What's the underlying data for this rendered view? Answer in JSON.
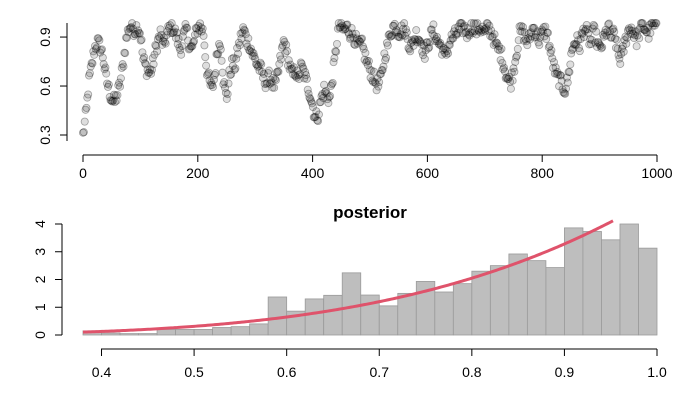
{
  "chart_data": [
    {
      "type": "scatter",
      "title": "",
      "xlabel": "",
      "ylabel": "",
      "xlim": [
        0,
        1000
      ],
      "ylim": [
        0.3,
        0.98
      ],
      "x_ticks": [
        "0",
        "200",
        "400",
        "600",
        "800",
        "1000"
      ],
      "y_ticks": [
        "0.3",
        "0.6",
        "0.9"
      ],
      "point_color": "#000000",
      "trace_anchors": [
        [
          0,
          0.3
        ],
        [
          3,
          0.37
        ],
        [
          6,
          0.45
        ],
        [
          10,
          0.62
        ],
        [
          15,
          0.72
        ],
        [
          20,
          0.83
        ],
        [
          25,
          0.87
        ],
        [
          30,
          0.84
        ],
        [
          35,
          0.78
        ],
        [
          40,
          0.65
        ],
        [
          45,
          0.58
        ],
        [
          50,
          0.52
        ],
        [
          55,
          0.5
        ],
        [
          60,
          0.55
        ],
        [
          65,
          0.62
        ],
        [
          70,
          0.74
        ],
        [
          75,
          0.88
        ],
        [
          80,
          0.96
        ],
        [
          85,
          0.97
        ],
        [
          90,
          0.94
        ],
        [
          95,
          0.97
        ],
        [
          100,
          0.92
        ],
        [
          105,
          0.76
        ],
        [
          110,
          0.71
        ],
        [
          115,
          0.68
        ],
        [
          120,
          0.7
        ],
        [
          125,
          0.8
        ],
        [
          130,
          0.87
        ],
        [
          135,
          0.92
        ],
        [
          140,
          0.84
        ],
        [
          145,
          0.9
        ],
        [
          150,
          0.95
        ],
        [
          155,
          0.97
        ],
        [
          160,
          0.93
        ],
        [
          165,
          0.88
        ],
        [
          170,
          0.82
        ],
        [
          175,
          0.9
        ],
        [
          180,
          0.95
        ],
        [
          185,
          0.86
        ],
        [
          190,
          0.82
        ],
        [
          195,
          0.9
        ],
        [
          200,
          0.96
        ],
        [
          205,
          0.97
        ],
        [
          210,
          0.92
        ],
        [
          215,
          0.72
        ],
        [
          220,
          0.62
        ],
        [
          225,
          0.58
        ],
        [
          230,
          0.68
        ],
        [
          235,
          0.84
        ],
        [
          240,
          0.86
        ],
        [
          245,
          0.62
        ],
        [
          250,
          0.52
        ],
        [
          255,
          0.66
        ],
        [
          260,
          0.74
        ],
        [
          265,
          0.72
        ],
        [
          270,
          0.82
        ],
        [
          275,
          0.9
        ],
        [
          280,
          0.95
        ],
        [
          285,
          0.88
        ],
        [
          290,
          0.86
        ],
        [
          295,
          0.8
        ],
        [
          300,
          0.76
        ],
        [
          305,
          0.72
        ],
        [
          310,
          0.7
        ],
        [
          315,
          0.64
        ],
        [
          320,
          0.62
        ],
        [
          325,
          0.66
        ],
        [
          330,
          0.62
        ],
        [
          335,
          0.6
        ],
        [
          340,
          0.68
        ],
        [
          345,
          0.78
        ],
        [
          350,
          0.88
        ],
        [
          355,
          0.8
        ],
        [
          360,
          0.72
        ],
        [
          365,
          0.66
        ],
        [
          370,
          0.7
        ],
        [
          375,
          0.64
        ],
        [
          380,
          0.72
        ],
        [
          385,
          0.68
        ],
        [
          390,
          0.62
        ],
        [
          395,
          0.56
        ],
        [
          400,
          0.48
        ],
        [
          405,
          0.4
        ],
        [
          410,
          0.43
        ],
        [
          415,
          0.52
        ],
        [
          420,
          0.58
        ],
        [
          425,
          0.54
        ],
        [
          430,
          0.52
        ],
        [
          435,
          0.66
        ],
        [
          440,
          0.8
        ],
        [
          445,
          0.97
        ],
        [
          450,
          0.96
        ],
        [
          455,
          0.94
        ],
        [
          460,
          0.96
        ],
        [
          465,
          0.93
        ],
        [
          470,
          0.92
        ],
        [
          475,
          0.88
        ],
        [
          480,
          0.84
        ],
        [
          485,
          0.86
        ],
        [
          490,
          0.8
        ],
        [
          495,
          0.74
        ],
        [
          500,
          0.7
        ],
        [
          505,
          0.66
        ],
        [
          510,
          0.62
        ],
        [
          515,
          0.6
        ],
        [
          520,
          0.66
        ],
        [
          525,
          0.78
        ],
        [
          530,
          0.84
        ],
        [
          535,
          0.92
        ],
        [
          540,
          0.96
        ],
        [
          545,
          0.97
        ],
        [
          550,
          0.93
        ],
        [
          555,
          0.94
        ],
        [
          560,
          0.96
        ],
        [
          565,
          0.9
        ],
        [
          570,
          0.84
        ],
        [
          575,
          0.86
        ],
        [
          580,
          0.92
        ],
        [
          585,
          0.9
        ],
        [
          590,
          0.86
        ],
        [
          595,
          0.8
        ],
        [
          600,
          0.84
        ],
        [
          605,
          0.9
        ],
        [
          610,
          0.94
        ],
        [
          615,
          0.9
        ],
        [
          620,
          0.86
        ],
        [
          625,
          0.84
        ],
        [
          630,
          0.78
        ],
        [
          635,
          0.82
        ],
        [
          640,
          0.88
        ],
        [
          645,
          0.9
        ],
        [
          650,
          0.92
        ],
        [
          655,
          0.94
        ],
        [
          660,
          0.96
        ],
        [
          665,
          0.95
        ],
        [
          670,
          0.92
        ],
        [
          675,
          0.96
        ],
        [
          680,
          0.97
        ],
        [
          685,
          0.94
        ],
        [
          690,
          0.96
        ],
        [
          695,
          0.95
        ],
        [
          700,
          0.92
        ],
        [
          705,
          0.96
        ],
        [
          710,
          0.94
        ],
        [
          715,
          0.9
        ],
        [
          720,
          0.84
        ],
        [
          725,
          0.82
        ],
        [
          730,
          0.78
        ],
        [
          735,
          0.7
        ],
        [
          740,
          0.64
        ],
        [
          745,
          0.62
        ],
        [
          750,
          0.7
        ],
        [
          755,
          0.8
        ],
        [
          760,
          0.92
        ],
        [
          765,
          0.94
        ],
        [
          770,
          0.9
        ],
        [
          775,
          0.86
        ],
        [
          780,
          0.92
        ],
        [
          785,
          0.96
        ],
        [
          790,
          0.92
        ],
        [
          795,
          0.88
        ],
        [
          800,
          0.92
        ],
        [
          805,
          0.94
        ],
        [
          810,
          0.9
        ],
        [
          815,
          0.8
        ],
        [
          820,
          0.72
        ],
        [
          825,
          0.66
        ],
        [
          830,
          0.64
        ],
        [
          835,
          0.6
        ],
        [
          840,
          0.58
        ],
        [
          845,
          0.64
        ],
        [
          850,
          0.78
        ],
        [
          855,
          0.86
        ],
        [
          860,
          0.88
        ],
        [
          865,
          0.84
        ],
        [
          870,
          0.92
        ],
        [
          875,
          0.96
        ],
        [
          880,
          0.9
        ],
        [
          885,
          0.86
        ],
        [
          890,
          0.94
        ],
        [
          895,
          0.88
        ],
        [
          900,
          0.82
        ],
        [
          905,
          0.86
        ],
        [
          910,
          0.92
        ],
        [
          915,
          0.96
        ],
        [
          920,
          0.9
        ],
        [
          925,
          0.92
        ],
        [
          930,
          0.84
        ],
        [
          935,
          0.76
        ],
        [
          940,
          0.8
        ],
        [
          945,
          0.88
        ],
        [
          950,
          0.94
        ],
        [
          955,
          0.96
        ],
        [
          960,
          0.92
        ],
        [
          965,
          0.88
        ],
        [
          970,
          0.94
        ],
        [
          975,
          0.97
        ],
        [
          980,
          0.95
        ],
        [
          985,
          0.92
        ],
        [
          990,
          0.96
        ],
        [
          995,
          0.97
        ],
        [
          1000,
          0.95
        ]
      ]
    },
    {
      "type": "bar",
      "title": "posterior",
      "xlabel": "",
      "ylabel": "",
      "xlim": [
        0.38,
        1.0
      ],
      "ylim": [
        0,
        4
      ],
      "x_ticks": [
        "0.4",
        "0.5",
        "0.6",
        "0.7",
        "0.8",
        "0.9",
        "1.0"
      ],
      "y_ticks": [
        "0",
        "1",
        "2",
        "3",
        "4"
      ],
      "bin_width": 0.02,
      "bins": [
        {
          "x0": 0.38,
          "value": 0.15
        },
        {
          "x0": 0.4,
          "value": 0.07
        },
        {
          "x0": 0.42,
          "value": 0.05
        },
        {
          "x0": 0.44,
          "value": 0.05
        },
        {
          "x0": 0.46,
          "value": 0.2
        },
        {
          "x0": 0.48,
          "value": 0.2
        },
        {
          "x0": 0.5,
          "value": 0.2
        },
        {
          "x0": 0.52,
          "value": 0.27
        },
        {
          "x0": 0.54,
          "value": 0.3
        },
        {
          "x0": 0.56,
          "value": 0.4
        },
        {
          "x0": 0.58,
          "value": 1.37
        },
        {
          "x0": 0.6,
          "value": 0.86
        },
        {
          "x0": 0.62,
          "value": 1.3
        },
        {
          "x0": 0.64,
          "value": 1.43
        },
        {
          "x0": 0.66,
          "value": 2.24
        },
        {
          "x0": 0.68,
          "value": 1.44
        },
        {
          "x0": 0.7,
          "value": 1.05
        },
        {
          "x0": 0.72,
          "value": 1.5
        },
        {
          "x0": 0.74,
          "value": 1.93
        },
        {
          "x0": 0.76,
          "value": 1.55
        },
        {
          "x0": 0.78,
          "value": 1.85
        },
        {
          "x0": 0.8,
          "value": 2.3
        },
        {
          "x0": 0.82,
          "value": 2.5
        },
        {
          "x0": 0.84,
          "value": 2.92
        },
        {
          "x0": 0.86,
          "value": 2.68
        },
        {
          "x0": 0.88,
          "value": 2.43
        },
        {
          "x0": 0.9,
          "value": 3.86
        },
        {
          "x0": 0.92,
          "value": 3.73
        },
        {
          "x0": 0.94,
          "value": 3.43
        },
        {
          "x0": 0.96,
          "value": 4.0
        },
        {
          "x0": 0.98,
          "value": 3.13
        }
      ],
      "bar_color": "#bebebe",
      "curve_color": "#DF536B",
      "curve_function": "5x^4"
    }
  ]
}
